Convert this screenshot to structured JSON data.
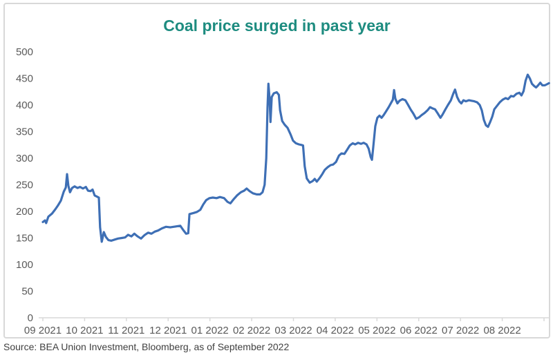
{
  "page": {
    "title": "Coal price surged in past year",
    "source_note": "Source: BEA Union Investment, Bloomberg, as of September 2022"
  },
  "colors": {
    "title_text": "#1e8c80",
    "line": "#3e6fb5",
    "axis_text": "#595959",
    "axis_line": "#d9d9d9",
    "card_border": "#d8d8d8",
    "source_text": "#3f3f3f"
  },
  "chart_data": {
    "type": "line",
    "title": "Coal price surged in past year",
    "xlabel": "",
    "ylabel": "",
    "ylim": [
      0,
      500
    ],
    "y_ticks": [
      0,
      50,
      100,
      150,
      200,
      250,
      300,
      350,
      400,
      450,
      500
    ],
    "x_labels": [
      "09 2021",
      "10 2021",
      "11 2021",
      "12 2021",
      "01 2022",
      "02 2022",
      "03 2022",
      "04 2022",
      "05 2022",
      "06 2022",
      "07 2022",
      "08 2022"
    ],
    "grid": false,
    "legend_position": "none",
    "series": [
      {
        "name": "Coal price",
        "x_unit": "months since Sep 2021",
        "points": [
          [
            0,
            180
          ],
          [
            0.05,
            183
          ],
          [
            0.08,
            178
          ],
          [
            0.13,
            190
          ],
          [
            0.22,
            196
          ],
          [
            0.3,
            204
          ],
          [
            0.36,
            211
          ],
          [
            0.43,
            220
          ],
          [
            0.5,
            237
          ],
          [
            0.55,
            245
          ],
          [
            0.58,
            270
          ],
          [
            0.61,
            248
          ],
          [
            0.65,
            236
          ],
          [
            0.7,
            244
          ],
          [
            0.76,
            247
          ],
          [
            0.83,
            244
          ],
          [
            0.89,
            246
          ],
          [
            0.96,
            243
          ],
          [
            1.03,
            246
          ],
          [
            1.08,
            239
          ],
          [
            1.14,
            238
          ],
          [
            1.19,
            241
          ],
          [
            1.24,
            230
          ],
          [
            1.29,
            228
          ],
          [
            1.34,
            226
          ],
          [
            1.37,
            170
          ],
          [
            1.41,
            143
          ],
          [
            1.46,
            161
          ],
          [
            1.51,
            152
          ],
          [
            1.57,
            146
          ],
          [
            1.64,
            145
          ],
          [
            1.72,
            147
          ],
          [
            1.8,
            149
          ],
          [
            1.89,
            150
          ],
          [
            1.97,
            151
          ],
          [
            2.04,
            156
          ],
          [
            2.12,
            153
          ],
          [
            2.19,
            158
          ],
          [
            2.27,
            153
          ],
          [
            2.35,
            149
          ],
          [
            2.43,
            155
          ],
          [
            2.52,
            160
          ],
          [
            2.6,
            158
          ],
          [
            2.68,
            162
          ],
          [
            2.76,
            164
          ],
          [
            2.85,
            168
          ],
          [
            2.95,
            171
          ],
          [
            3.05,
            170
          ],
          [
            3.13,
            171
          ],
          [
            3.21,
            172
          ],
          [
            3.29,
            173
          ],
          [
            3.36,
            165
          ],
          [
            3.43,
            158
          ],
          [
            3.48,
            159
          ],
          [
            3.51,
            195
          ],
          [
            3.61,
            197
          ],
          [
            3.69,
            199
          ],
          [
            3.77,
            203
          ],
          [
            3.84,
            213
          ],
          [
            3.91,
            221
          ],
          [
            3.99,
            225
          ],
          [
            4.07,
            226
          ],
          [
            4.16,
            225
          ],
          [
            4.24,
            227
          ],
          [
            4.34,
            225
          ],
          [
            4.42,
            218
          ],
          [
            4.49,
            215
          ],
          [
            4.57,
            223
          ],
          [
            4.65,
            230
          ],
          [
            4.74,
            236
          ],
          [
            4.82,
            239
          ],
          [
            4.88,
            243
          ],
          [
            4.95,
            238
          ],
          [
            5.03,
            234
          ],
          [
            5.12,
            232
          ],
          [
            5.2,
            232
          ],
          [
            5.26,
            236
          ],
          [
            5.31,
            250
          ],
          [
            5.35,
            300
          ],
          [
            5.38,
            395
          ],
          [
            5.4,
            440
          ],
          [
            5.43,
            410
          ],
          [
            5.45,
            368
          ],
          [
            5.48,
            415
          ],
          [
            5.53,
            422
          ],
          [
            5.6,
            424
          ],
          [
            5.65,
            419
          ],
          [
            5.68,
            390
          ],
          [
            5.73,
            370
          ],
          [
            5.79,
            363
          ],
          [
            5.86,
            357
          ],
          [
            5.93,
            345
          ],
          [
            5.99,
            333
          ],
          [
            6.06,
            328
          ],
          [
            6.13,
            326
          ],
          [
            6.19,
            325
          ],
          [
            6.23,
            324
          ],
          [
            6.27,
            285
          ],
          [
            6.32,
            262
          ],
          [
            6.39,
            254
          ],
          [
            6.46,
            257
          ],
          [
            6.51,
            261
          ],
          [
            6.56,
            256
          ],
          [
            6.62,
            262
          ],
          [
            6.69,
            270
          ],
          [
            6.75,
            278
          ],
          [
            6.82,
            283
          ],
          [
            6.89,
            287
          ],
          [
            6.95,
            288
          ],
          [
            7.02,
            293
          ],
          [
            7.09,
            305
          ],
          [
            7.15,
            309
          ],
          [
            7.22,
            308
          ],
          [
            7.28,
            315
          ],
          [
            7.35,
            324
          ],
          [
            7.42,
            328
          ],
          [
            7.48,
            326
          ],
          [
            7.55,
            329
          ],
          [
            7.62,
            327
          ],
          [
            7.68,
            329
          ],
          [
            7.75,
            326
          ],
          [
            7.8,
            318
          ],
          [
            7.85,
            302
          ],
          [
            7.88,
            297
          ],
          [
            7.91,
            320
          ],
          [
            7.96,
            360
          ],
          [
            8.01,
            376
          ],
          [
            8.06,
            380
          ],
          [
            8.11,
            376
          ],
          [
            8.16,
            381
          ],
          [
            8.21,
            387
          ],
          [
            8.28,
            396
          ],
          [
            8.33,
            403
          ],
          [
            8.38,
            410
          ],
          [
            8.41,
            428
          ],
          [
            8.44,
            412
          ],
          [
            8.49,
            403
          ],
          [
            8.54,
            408
          ],
          [
            8.61,
            411
          ],
          [
            8.68,
            409
          ],
          [
            8.74,
            401
          ],
          [
            8.81,
            391
          ],
          [
            8.87,
            384
          ],
          [
            8.94,
            374
          ],
          [
            9.01,
            377
          ],
          [
            9.07,
            381
          ],
          [
            9.14,
            385
          ],
          [
            9.21,
            390
          ],
          [
            9.27,
            396
          ],
          [
            9.32,
            394
          ],
          [
            9.39,
            392
          ],
          [
            9.45,
            385
          ],
          [
            9.52,
            376
          ],
          [
            9.57,
            382
          ],
          [
            9.64,
            392
          ],
          [
            9.7,
            400
          ],
          [
            9.77,
            409
          ],
          [
            9.83,
            422
          ],
          [
            9.87,
            429
          ],
          [
            9.92,
            415
          ],
          [
            9.97,
            407
          ],
          [
            10.02,
            403
          ],
          [
            10.07,
            409
          ],
          [
            10.13,
            407
          ],
          [
            10.2,
            409
          ],
          [
            10.26,
            408
          ],
          [
            10.33,
            407
          ],
          [
            10.4,
            405
          ],
          [
            10.46,
            400
          ],
          [
            10.51,
            390
          ],
          [
            10.56,
            372
          ],
          [
            10.61,
            362
          ],
          [
            10.66,
            359
          ],
          [
            10.71,
            368
          ],
          [
            10.76,
            378
          ],
          [
            10.81,
            392
          ],
          [
            10.88,
            399
          ],
          [
            10.94,
            405
          ],
          [
            11.01,
            410
          ],
          [
            11.08,
            413
          ],
          [
            11.14,
            411
          ],
          [
            11.21,
            417
          ],
          [
            11.27,
            416
          ],
          [
            11.34,
            421
          ],
          [
            11.41,
            423
          ],
          [
            11.46,
            418
          ],
          [
            11.51,
            426
          ],
          [
            11.56,
            446
          ],
          [
            11.61,
            457
          ],
          [
            11.66,
            450
          ],
          [
            11.71,
            440
          ],
          [
            11.76,
            436
          ],
          [
            11.81,
            433
          ],
          [
            11.86,
            437
          ],
          [
            11.91,
            442
          ],
          [
            11.96,
            437
          ],
          [
            12.02,
            437
          ],
          [
            12.07,
            439
          ],
          [
            12.12,
            441
          ]
        ]
      }
    ]
  }
}
